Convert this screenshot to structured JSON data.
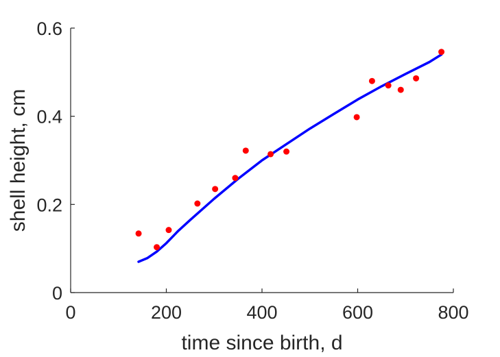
{
  "chart_data": {
    "type": "scatter",
    "xlabel": "time since birth, d",
    "ylabel": "shell height, cm",
    "xlim": [
      0,
      800
    ],
    "ylim": [
      0,
      0.6
    ],
    "xticks": [
      0,
      200,
      400,
      600,
      800
    ],
    "yticks": [
      0,
      0.2,
      0.4,
      0.6
    ],
    "xtick_labels": [
      "0",
      "200",
      "400",
      "600",
      "800"
    ],
    "ytick_labels": [
      "0",
      "0.2",
      "0.4",
      "0.6"
    ],
    "grid": false,
    "series": [
      {
        "kind": "scatter",
        "color": "#ff0000",
        "x": [
          142,
          180,
          205,
          265,
          302,
          344,
          366,
          418,
          451,
          598,
          630,
          664,
          690,
          722,
          775
        ],
        "y": [
          0.134,
          0.103,
          0.142,
          0.202,
          0.235,
          0.26,
          0.322,
          0.314,
          0.32,
          0.398,
          0.48,
          0.47,
          0.46,
          0.486,
          0.546
        ]
      },
      {
        "kind": "line",
        "color": "#0000ff",
        "x": [
          142,
          160,
          180,
          200,
          225,
          250,
          300,
          350,
          400,
          450,
          500,
          550,
          600,
          650,
          700,
          750,
          775
        ],
        "y": [
          0.07,
          0.078,
          0.093,
          0.112,
          0.14,
          0.165,
          0.213,
          0.258,
          0.3,
          0.336,
          0.372,
          0.405,
          0.438,
          0.468,
          0.496,
          0.523,
          0.54
        ]
      }
    ]
  }
}
